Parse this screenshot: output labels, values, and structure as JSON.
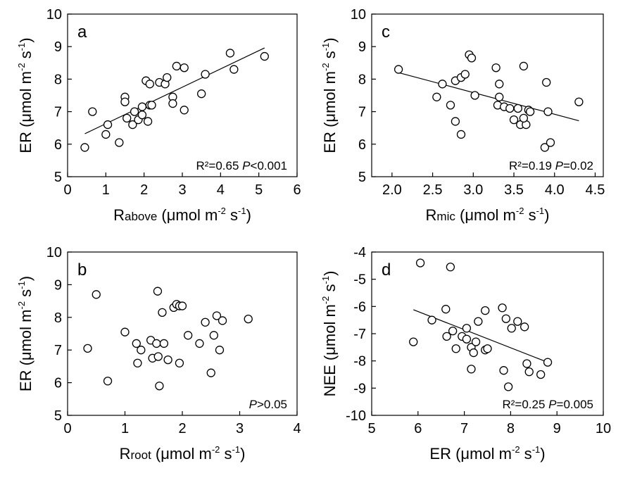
{
  "chart_data": [
    {
      "panel": "a",
      "type": "scatter",
      "xlabel": "Rabove (μmol m-2 s-1)",
      "xlabel_main": "R",
      "xlabel_sub": "above",
      "ylabel": "ER (μmol m-2 s-1)",
      "xlim": [
        0,
        6
      ],
      "ylim": [
        5,
        10
      ],
      "xticks": [
        "0",
        "1",
        "2",
        "3",
        "4",
        "5",
        "6"
      ],
      "yticks": [
        "5",
        "6",
        "7",
        "8",
        "9",
        "10"
      ],
      "stat_r2": "R²=0.65",
      "stat_p_symbol": "P",
      "stat_p_value": "<0.001",
      "x": [
        0.45,
        0.65,
        1.0,
        1.05,
        1.35,
        1.5,
        1.5,
        1.55,
        1.7,
        1.75,
        1.85,
        1.95,
        1.95,
        2.05,
        2.1,
        2.15,
        2.15,
        2.2,
        2.4,
        2.55,
        2.6,
        2.75,
        2.75,
        2.85,
        3.05,
        3.05,
        3.5,
        3.6,
        4.25,
        4.35,
        5.15
      ],
      "y": [
        5.9,
        7.0,
        6.3,
        6.6,
        6.05,
        7.45,
        7.3,
        6.8,
        6.6,
        7.0,
        6.75,
        7.15,
        6.9,
        7.95,
        6.7,
        7.85,
        7.2,
        7.2,
        7.9,
        7.85,
        8.05,
        7.45,
        7.25,
        8.4,
        7.05,
        8.35,
        7.55,
        8.15,
        8.8,
        8.3,
        8.7
      ],
      "trendline": {
        "x": [
          0.45,
          5.15
        ],
        "y": [
          6.32,
          8.96
        ]
      }
    },
    {
      "panel": "b",
      "type": "scatter",
      "xlabel": "Rroot (μmol m-2 s-1)",
      "xlabel_main": "R",
      "xlabel_sub": "root",
      "ylabel": "ER (μmol m-2 s-1)",
      "xlim": [
        0,
        4
      ],
      "ylim": [
        5,
        10
      ],
      "xticks": [
        "0",
        "1",
        "2",
        "3",
        "4"
      ],
      "yticks": [
        "5",
        "6",
        "7",
        "8",
        "9",
        "10"
      ],
      "stat_p_symbol": "P",
      "stat_p_value": ">0.05",
      "x": [
        0.35,
        0.5,
        0.7,
        1.0,
        1.2,
        1.22,
        1.28,
        1.45,
        1.48,
        1.55,
        1.57,
        1.58,
        1.6,
        1.65,
        1.68,
        1.75,
        1.85,
        1.9,
        1.95,
        1.95,
        2.0,
        2.1,
        2.3,
        2.4,
        2.5,
        2.55,
        2.6,
        2.65,
        2.7,
        3.15
      ],
      "y": [
        7.05,
        8.7,
        6.05,
        7.55,
        7.2,
        6.6,
        7.0,
        7.3,
        6.75,
        7.2,
        8.8,
        6.8,
        5.9,
        8.15,
        7.2,
        6.7,
        8.3,
        8.4,
        6.6,
        8.35,
        8.35,
        7.45,
        7.2,
        7.85,
        6.3,
        7.45,
        8.05,
        7.0,
        7.9,
        7.95
      ]
    },
    {
      "panel": "c",
      "type": "scatter",
      "xlabel": "Rmic (μmol m-2 s-1)",
      "xlabel_main": "R",
      "xlabel_sub": "mic",
      "ylabel": "ER (μmol m-2 s-1)",
      "xlim": [
        1.75,
        4.6
      ],
      "ylim": [
        5,
        10
      ],
      "xticks": [
        "2.0",
        "2.5",
        "3.0",
        "3.5",
        "4.0",
        "4.5"
      ],
      "xtick_values": [
        2.0,
        2.5,
        3.0,
        3.5,
        4.0,
        4.5
      ],
      "yticks": [
        "5",
        "6",
        "7",
        "8",
        "9",
        "10"
      ],
      "stat_r2": "R²=0.19",
      "stat_p_symbol": "P",
      "stat_p_value": "=0.02",
      "x": [
        2.08,
        2.55,
        2.62,
        2.72,
        2.78,
        2.78,
        2.85,
        2.85,
        2.9,
        2.95,
        2.98,
        3.02,
        3.28,
        3.3,
        3.32,
        3.32,
        3.38,
        3.45,
        3.5,
        3.55,
        3.58,
        3.62,
        3.65,
        3.68,
        3.7,
        3.88,
        3.9,
        3.92,
        3.95,
        4.3,
        3.62
      ],
      "y": [
        8.3,
        7.45,
        7.85,
        7.2,
        7.95,
        6.7,
        8.05,
        6.3,
        8.15,
        8.75,
        8.65,
        7.5,
        8.35,
        7.2,
        7.85,
        7.45,
        7.15,
        7.1,
        6.75,
        7.1,
        6.6,
        8.4,
        6.6,
        7.05,
        7.0,
        5.9,
        7.9,
        7.0,
        6.05,
        7.3,
        6.8
      ],
      "trendline": {
        "x": [
          2.08,
          4.3
        ],
        "y": [
          8.2,
          6.72
        ]
      }
    },
    {
      "panel": "d",
      "type": "scatter",
      "xlabel": "ER (μmol m-2 s-1)",
      "xlabel_main": "ER",
      "xlabel_sub": "",
      "ylabel": "NEE (μmol m-2 s-1)",
      "xlim": [
        5,
        10
      ],
      "ylim": [
        -10,
        -4
      ],
      "xticks": [
        "5",
        "6",
        "7",
        "8",
        "9",
        "10"
      ],
      "yticks": [
        "-10",
        "-9",
        "-8",
        "-7",
        "-6",
        "-5",
        "-4"
      ],
      "stat_r2": "R²=0.25",
      "stat_p_symbol": "P",
      "stat_p_value": "=0.005",
      "x": [
        5.9,
        6.05,
        6.3,
        6.6,
        6.62,
        6.7,
        6.75,
        6.82,
        6.95,
        7.05,
        7.05,
        7.15,
        7.15,
        7.2,
        7.25,
        7.3,
        7.45,
        7.45,
        7.5,
        7.82,
        7.85,
        7.9,
        7.95,
        8.02,
        8.15,
        8.3,
        8.35,
        8.4,
        8.65,
        8.8
      ],
      "y": [
        -7.3,
        -4.4,
        -6.5,
        -6.1,
        -7.1,
        -4.55,
        -6.9,
        -7.55,
        -7.1,
        -6.8,
        -7.2,
        -7.5,
        -8.3,
        -7.7,
        -7.3,
        -6.55,
        -6.15,
        -7.6,
        -7.55,
        -6.05,
        -8.35,
        -6.45,
        -8.95,
        -6.8,
        -6.55,
        -6.75,
        -8.1,
        -8.4,
        -8.5,
        -8.05
      ],
      "trendline": {
        "x": [
          5.9,
          8.8
        ],
        "y": [
          -6.12,
          -8.05
        ]
      }
    }
  ],
  "units": {
    "open": "(",
    "mu": "μ",
    "mol_m": "mol m",
    "exp1": "-2",
    "s": " s",
    "exp2": "-1",
    "close": ")"
  }
}
